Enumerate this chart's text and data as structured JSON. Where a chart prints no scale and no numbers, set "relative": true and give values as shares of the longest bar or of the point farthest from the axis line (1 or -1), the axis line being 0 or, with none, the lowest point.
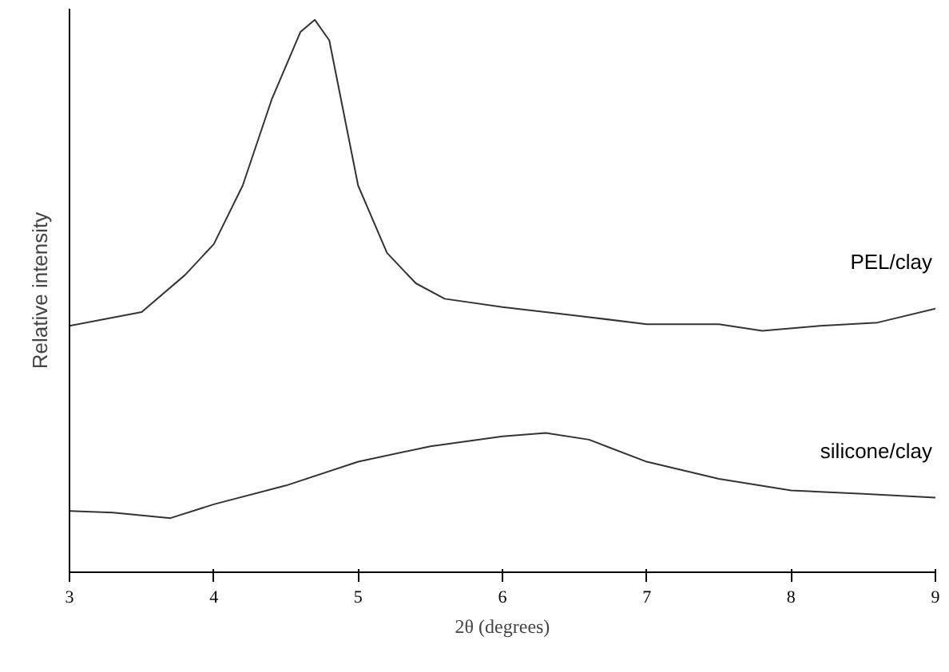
{
  "chart_data": {
    "type": "line",
    "relative": true,
    "xlabel": "2θ (degrees)",
    "ylabel": "Relative intensity",
    "xlim": [
      3,
      9
    ],
    "xticks": [
      3,
      4,
      5,
      6,
      7,
      8,
      9
    ],
    "grid": false,
    "legend": false,
    "series": [
      {
        "name": "PEL/clay",
        "color": "#333333",
        "x": [
          3,
          3.5,
          3.8,
          4.0,
          4.2,
          4.4,
          4.6,
          4.7,
          4.8,
          5.0,
          5.2,
          5.4,
          5.6,
          6.0,
          6.5,
          7.0,
          7.5,
          7.8,
          8.2,
          8.6,
          9.0
        ],
        "values": [
          0.446,
          0.471,
          0.538,
          0.594,
          0.7,
          0.855,
          0.978,
          1.0,
          0.963,
          0.7,
          0.578,
          0.523,
          0.495,
          0.48,
          0.465,
          0.449,
          0.449,
          0.437,
          0.446,
          0.452,
          0.477
        ]
      },
      {
        "name": "silicone/clay",
        "color": "#333333",
        "x": [
          3,
          3.3,
          3.7,
          4.0,
          4.5,
          5.0,
          5.5,
          6.0,
          6.3,
          6.6,
          7.0,
          7.5,
          8.0,
          8.5,
          9.0
        ],
        "values": [
          0.111,
          0.108,
          0.098,
          0.123,
          0.157,
          0.2,
          0.228,
          0.246,
          0.252,
          0.24,
          0.2,
          0.169,
          0.148,
          0.142,
          0.135
        ]
      }
    ]
  }
}
